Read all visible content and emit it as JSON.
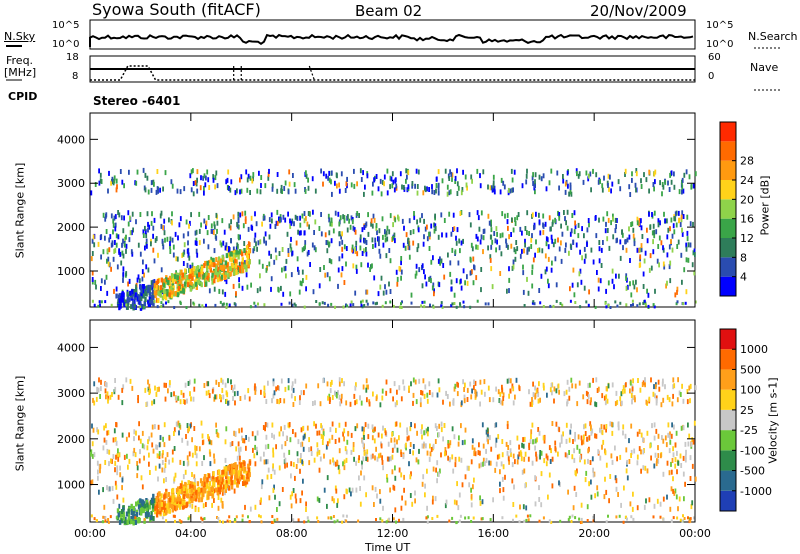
{
  "header": {
    "station": "Syowa South (fitACF)",
    "beam": "Beam 02",
    "date": "20/Nov/2009"
  },
  "panels": {
    "nsky_label": "N.Sky",
    "nsky_ticks": [
      "10^5",
      "10^0"
    ],
    "nsearch_label": "N.Search",
    "nsearch_ticks": [
      "10^5",
      "10^0"
    ],
    "freq_label": "Freq.",
    "freq_unit": "[MHz]",
    "freq_ticks": [
      "18",
      "8"
    ],
    "nave_label": "Nave",
    "nave_ticks": [
      "60",
      "0"
    ],
    "cpid_label": "CPID",
    "cpid_value": "Stereo -6401"
  },
  "colors": {
    "power": [
      "#0000ff",
      "#2a4cb0",
      "#2e7d5a",
      "#3aa548",
      "#8fd34a",
      "#ffd21a",
      "#ff9a10",
      "#ff6a00",
      "#ff2a00"
    ],
    "velocity": [
      "#1f3fb5",
      "#2a6a8f",
      "#2e8c4a",
      "#6bc83a",
      "#c8c8c8",
      "#ffd21a",
      "#ff9f1a",
      "#ff6a00",
      "#e01010"
    ]
  },
  "chart_data": [
    {
      "type": "heatmap",
      "name": "power",
      "ylabel": "Slant Range [km]",
      "xlabel": "Time UT",
      "x_ticks": [
        "00:00",
        "04:00",
        "08:00",
        "12:00",
        "16:00",
        "20:00",
        "00:00"
      ],
      "y_ticks": [
        1000,
        2000,
        3000,
        4000
      ],
      "ylim": [
        180,
        4600
      ],
      "xlim_hours": [
        0,
        24
      ],
      "colorbar_label": "Power [dB]",
      "colorbar_ticks": [
        "4",
        "8",
        "12",
        "16",
        "20",
        "24",
        "28"
      ]
    },
    {
      "type": "heatmap",
      "name": "velocity",
      "ylabel": "Slant Range [km]",
      "xlabel": "Time UT",
      "x_ticks": [
        "00:00",
        "04:00",
        "08:00",
        "12:00",
        "16:00",
        "20:00",
        "00:00"
      ],
      "y_ticks": [
        1000,
        2000,
        3000,
        4000
      ],
      "ylim": [
        180,
        4600
      ],
      "xlim_hours": [
        0,
        24
      ],
      "colorbar_label": "Velocity [m s-1]",
      "colorbar_ticks": [
        "1000",
        "500",
        "100",
        "25",
        "-25",
        "-100",
        "-500",
        "-1000"
      ]
    }
  ]
}
